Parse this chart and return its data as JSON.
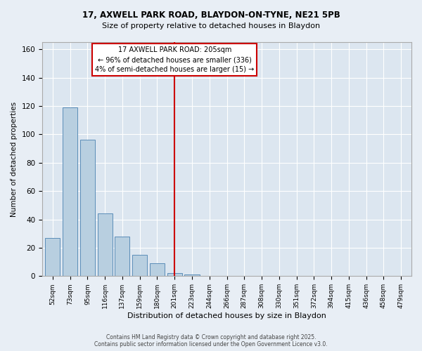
{
  "title_line1": "17, AXWELL PARK ROAD, BLAYDON-ON-TYNE, NE21 5PB",
  "title_line2": "Size of property relative to detached houses in Blaydon",
  "xlabel": "Distribution of detached houses by size in Blaydon",
  "ylabel": "Number of detached properties",
  "categories": [
    "52sqm",
    "73sqm",
    "95sqm",
    "116sqm",
    "137sqm",
    "159sqm",
    "180sqm",
    "201sqm",
    "223sqm",
    "244sqm",
    "266sqm",
    "287sqm",
    "308sqm",
    "330sqm",
    "351sqm",
    "372sqm",
    "394sqm",
    "415sqm",
    "436sqm",
    "458sqm",
    "479sqm"
  ],
  "values": [
    27,
    119,
    96,
    44,
    28,
    15,
    9,
    2,
    1,
    0,
    0,
    0,
    0,
    0,
    0,
    0,
    0,
    0,
    0,
    0,
    0
  ],
  "bar_color": "#b8cfe0",
  "bar_edge_color": "#5b8db8",
  "vline_x_index": 7,
  "vline_color": "#cc0000",
  "annotation_title": "17 AXWELL PARK ROAD: 205sqm",
  "annotation_line2": "← 96% of detached houses are smaller (336)",
  "annotation_line3": "4% of semi-detached houses are larger (15) →",
  "ylim": [
    0,
    165
  ],
  "yticks": [
    0,
    20,
    40,
    60,
    80,
    100,
    120,
    140,
    160
  ],
  "bg_color": "#dce6f0",
  "fig_bg_color": "#e8eef5",
  "footer_line1": "Contains HM Land Registry data © Crown copyright and database right 2025.",
  "footer_line2": "Contains public sector information licensed under the Open Government Licence v3.0."
}
